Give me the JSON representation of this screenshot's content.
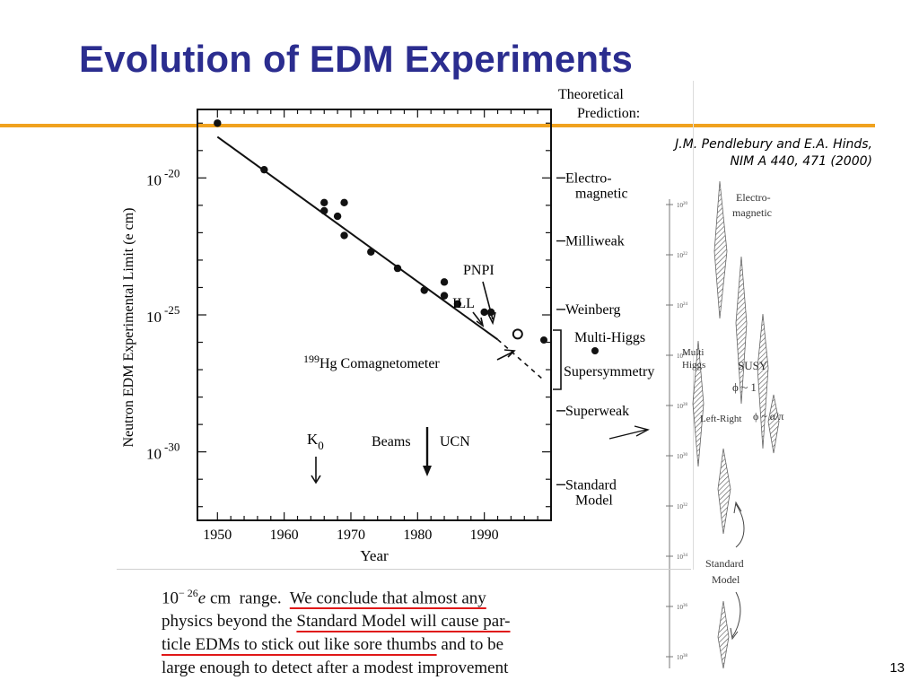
{
  "slide": {
    "title": "Evolution of EDM Experiments",
    "citation_line1": "J.M. Pendlebury and E.A. Hinds,",
    "citation_line2": "NIM A 440, 471 (2000)",
    "page_number": "13"
  },
  "chart_data": {
    "type": "scatter",
    "title": "",
    "xlabel": "Year",
    "ylabel": "Neutron EDM Experimental  Limit (e cm)",
    "xlim": [
      1947,
      2000
    ],
    "ylim_exponent": [
      -32.5,
      -17.5
    ],
    "y_scale": "log",
    "x_ticks": [
      1950,
      1960,
      1970,
      1980,
      1990
    ],
    "y_ticks": [
      {
        "exp": -20,
        "label_base": "10",
        "label_exp": "-20"
      },
      {
        "exp": -25,
        "label_base": "10",
        "label_exp": "-25"
      },
      {
        "exp": -30,
        "label_base": "10",
        "label_exp": "-30"
      }
    ],
    "points": [
      {
        "year": 1950,
        "exp": -18.0
      },
      {
        "year": 1957,
        "exp": -19.7
      },
      {
        "year": 1966,
        "exp": -20.9
      },
      {
        "year": 1966,
        "exp": -21.2
      },
      {
        "year": 1968,
        "exp": -21.4
      },
      {
        "year": 1969,
        "exp": -20.9
      },
      {
        "year": 1969,
        "exp": -22.1
      },
      {
        "year": 1973,
        "exp": -22.7
      },
      {
        "year": 1977,
        "exp": -23.3
      },
      {
        "year": 1981,
        "exp": -24.1
      },
      {
        "year": 1984,
        "exp": -23.8
      },
      {
        "year": 1984,
        "exp": -24.3
      },
      {
        "year": 1986,
        "exp": -24.6
      },
      {
        "year": 1990,
        "exp": -24.9
      },
      {
        "year": 1991,
        "exp": -24.9
      }
    ],
    "open_point": {
      "year": 1995,
      "exp": -25.7
    },
    "trend_line": {
      "start": [
        1950,
        -18.5
      ],
      "end": [
        1992,
        -25.9
      ],
      "dashed_end": [
        1999,
        -27.4
      ]
    },
    "theory_labels": [
      {
        "exp": -20.0,
        "lines": [
          "Electro-",
          "magnetic"
        ]
      },
      {
        "exp": -22.3,
        "lines": [
          "Milliweak"
        ]
      },
      {
        "exp": -24.8,
        "lines": [
          "Weinberg"
        ]
      },
      {
        "exp": -28.5,
        "lines": [
          "Superweak"
        ]
      },
      {
        "exp": -31.2,
        "lines": [
          "Standard",
          "Model"
        ]
      }
    ],
    "theory_header": [
      "Theoretical",
      "Prediction:"
    ],
    "multi_higgs_label": "Multi-Higgs",
    "supersymmetry_label": "Supersymmetry",
    "comagnetometer_label": {
      "mass": "199",
      "text": "Hg Comagnetometer"
    },
    "annotations": {
      "pnpi": "PNPI",
      "ill": "ILL",
      "k0_base": "K",
      "k0_sub": "0",
      "beams": "Beams",
      "ucn": "UCN"
    }
  },
  "side_panel": {
    "tick_exponents": [
      "20",
      "22",
      "24",
      "26",
      "28",
      "30",
      "32",
      "34",
      "36",
      "38"
    ],
    "labels": {
      "electromagnetic": [
        "Electro-",
        "magnetic"
      ],
      "multi_higgs": [
        "Multi",
        "Higgs"
      ],
      "susy": "SUSY",
      "phi1": "ϕ ~ 1",
      "left_right": "Left-Right",
      "phi_alpha": "ϕ ~ α/π",
      "standard_model": [
        "Standard",
        "Model"
      ]
    }
  },
  "excerpt": {
    "line1_pre": "10",
    "line1_sup": "− 26",
    "line1_e": "e",
    "line1_mid": " cm  range.  ",
    "line1_u": "We  conclude  that  almost  any",
    "line2_pre": "physics beyond the ",
    "line2_u": "Standard Model will cause par-",
    "line3_u": "ticle EDMs to stick out like sore thumbs",
    "line3_post": " and to be",
    "line4": "large enough to detect after a modest improvement"
  }
}
